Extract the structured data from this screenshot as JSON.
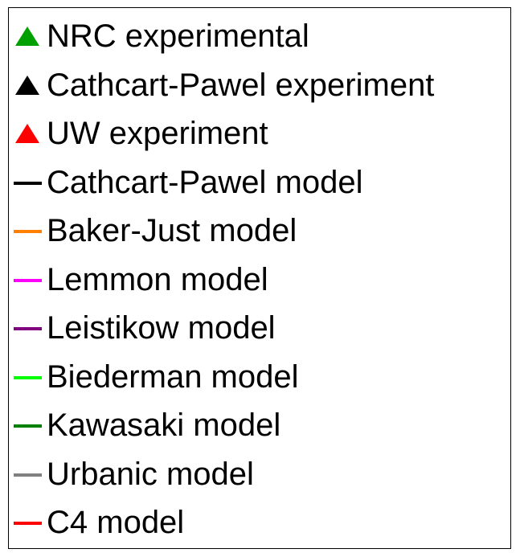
{
  "chart_data": {
    "type": "legend",
    "legend": [
      {
        "name": "NRC experimental",
        "marker": "triangle",
        "color": "#00a000"
      },
      {
        "name": "Cathcart-Pawel experiment",
        "marker": "triangle",
        "color": "#000000"
      },
      {
        "name": "UW experiment",
        "marker": "triangle",
        "color": "#ff0000"
      },
      {
        "name": "Cathcart-Pawel model",
        "marker": "line",
        "color": "#000000"
      },
      {
        "name": "Baker-Just model",
        "marker": "line",
        "color": "#ff8000"
      },
      {
        "name": "Lemmon model",
        "marker": "line",
        "color": "#ff00ff"
      },
      {
        "name": "Leistikow model",
        "marker": "line",
        "color": "#800080"
      },
      {
        "name": "Biederman model",
        "marker": "line",
        "color": "#00ff00"
      },
      {
        "name": "Kawasaki model",
        "marker": "line",
        "color": "#008000"
      },
      {
        "name": "Urbanic model",
        "marker": "line",
        "color": "#808080"
      },
      {
        "name": "C4 model",
        "marker": "line",
        "color": "#ff0000"
      }
    ]
  }
}
